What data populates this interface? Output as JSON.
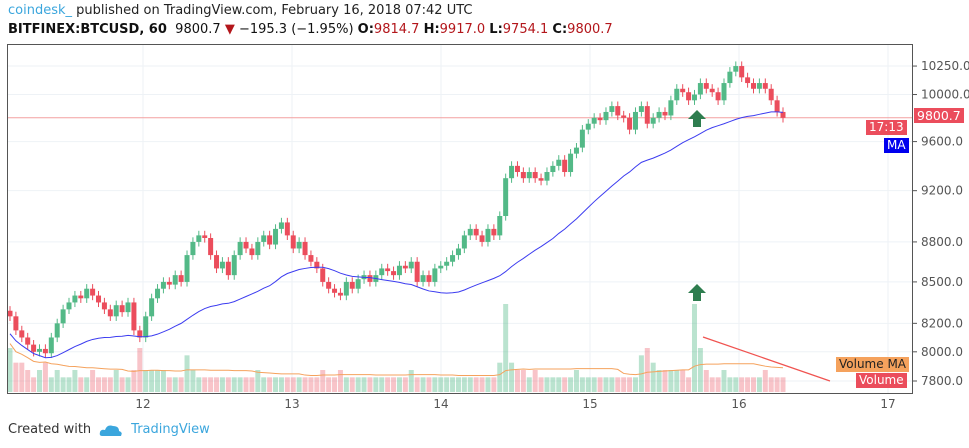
{
  "header": {
    "user": "coindesk_",
    "published": "published on TradingView.com, February 16, 2018 07:42 UTC",
    "symbol": "BITFINEX:BTCUSD, 60",
    "last": "9800.7",
    "change": "−195.3 (−1.95%)",
    "o_label": "O:",
    "o": "9814.7",
    "h_label": "H:",
    "h": "9917.0",
    "l_label": "L:",
    "l": "9754.1",
    "c_label": "C:",
    "c": "9800.7"
  },
  "price_axis": {
    "ticks": [
      "10250.0",
      "10000.0",
      "9600.0",
      "9200.0",
      "8800.0",
      "8500.0",
      "8200.0",
      "8000.0",
      "7800.0"
    ],
    "scale": "log"
  },
  "time_axis": {
    "ticks": [
      "12",
      "13",
      "14",
      "15",
      "16",
      "17"
    ]
  },
  "badges": {
    "price": "9800.7",
    "countdown": "17:13",
    "ma": "MA",
    "volume_ma": "Volume MA",
    "volume": "Volume"
  },
  "colors": {
    "up": "#53b987",
    "down": "#eb4d5c",
    "ma": "#3c3cf0",
    "volume_ma": "#f5a25d",
    "trendline": "#f05350",
    "arrow": "#2e7d4f"
  },
  "chart_data": {
    "type": "candlestick",
    "closes": [
      8250,
      8150,
      8100,
      8050,
      8000,
      8020,
      7990,
      8100,
      8200,
      8300,
      8350,
      8400,
      8380,
      8450,
      8400,
      8350,
      8300,
      8250,
      8330,
      8280,
      8350,
      8150,
      8100,
      8250,
      8380,
      8450,
      8500,
      8480,
      8550,
      8500,
      8700,
      8800,
      8850,
      8830,
      8700,
      8600,
      8650,
      8550,
      8700,
      8800,
      8750,
      8700,
      8800,
      8850,
      8780,
      8900,
      8950,
      8850,
      8750,
      8800,
      8700,
      8650,
      8600,
      8500,
      8450,
      8420,
      8400,
      8500,
      8450,
      8520,
      8550,
      8500,
      8550,
      8600,
      8580,
      8550,
      8620,
      8600,
      8650,
      8500,
      8550,
      8500,
      8600,
      8620,
      8650,
      8700,
      8750,
      8850,
      8900,
      8850,
      8800,
      8900,
      8850,
      9000,
      9300,
      9400,
      9350,
      9300,
      9350,
      9300,
      9280,
      9350,
      9400,
      9450,
      9350,
      9500,
      9550,
      9700,
      9750,
      9800,
      9780,
      9850,
      9900,
      9820,
      9800,
      9700,
      9850,
      9900,
      9750,
      9800,
      9850,
      9820,
      9950,
      10050,
      10020,
      9950,
      10000,
      10100,
      10050,
      10020,
      9950,
      10100,
      10200,
      10250,
      10150,
      10100,
      10050,
      10100,
      10050,
      9950,
      9850,
      9800
    ],
    "volumes": [
      3,
      2,
      2,
      1.5,
      1,
      1.5,
      2,
      1,
      1.5,
      1,
      1,
      1.5,
      1,
      1,
      1.5,
      1,
      1,
      1,
      1.5,
      1,
      1,
      1.5,
      3,
      1.5,
      1.5,
      1.5,
      1.5,
      1,
      1,
      1,
      2.5,
      1.5,
      1,
      1,
      1,
      1,
      1,
      1,
      1,
      1,
      1,
      1,
      1.5,
      1,
      1,
      1,
      1,
      1,
      1,
      1,
      1,
      1,
      1,
      1.5,
      1,
      1,
      1.5,
      1,
      1,
      1,
      1,
      1,
      1,
      1,
      1,
      1,
      1,
      1,
      1.5,
      1,
      1,
      1,
      1,
      1,
      1,
      1,
      1,
      1,
      1,
      1,
      1,
      1,
      1,
      2,
      6,
      2,
      1.5,
      1.5,
      1,
      1.5,
      1,
      1,
      1,
      1,
      1,
      1,
      1.5,
      1,
      1,
      1,
      1,
      1,
      1,
      1,
      1,
      1,
      1,
      2.5,
      3,
      2,
      1.5,
      1.5,
      1.5,
      1.5,
      1.5,
      1,
      6,
      3,
      1.5,
      1,
      1,
      1.5,
      1,
      1,
      1,
      1,
      1,
      1,
      1.5,
      1,
      1,
      1
    ]
  },
  "footer": {
    "created": "Created with",
    "brand": "TradingView"
  }
}
